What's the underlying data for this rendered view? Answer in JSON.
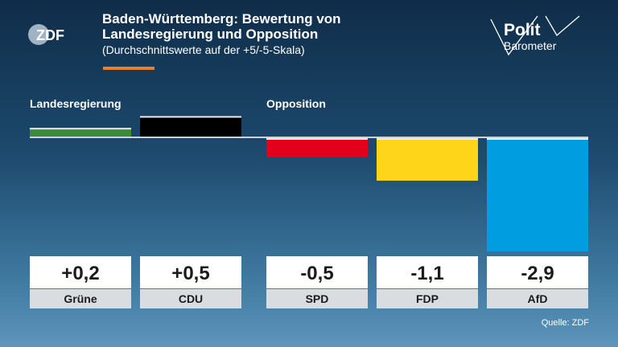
{
  "header": {
    "title_lines": [
      "Baden-Württemberg: Bewertung von",
      "Landesregierung und Opposition"
    ],
    "subtitle": "(Durchschnittswerte auf der +5/-5-Skala)",
    "accent_color": "#f07d22"
  },
  "logos": {
    "broadcaster": "ZDF",
    "program": [
      "Polit",
      "Barometer"
    ]
  },
  "source": "Quelle: ZDF",
  "chart_data": {
    "type": "bar",
    "title": "Baden-Württemberg: Bewertung von Landesregierung und Opposition",
    "subtitle": "(Durchschnittswerte auf der +5/-5-Skala)",
    "groups": [
      {
        "label": "Landesregierung",
        "categories": [
          "Grüne",
          "CDU"
        ]
      },
      {
        "label": "Opposition",
        "categories": [
          "SPD",
          "FDP",
          "AfD"
        ]
      }
    ],
    "categories": [
      "Grüne",
      "CDU",
      "SPD",
      "FDP",
      "AfD"
    ],
    "values": [
      0.2,
      0.5,
      -0.5,
      -1.1,
      -2.9
    ],
    "value_labels": [
      "+0,2",
      "+0,5",
      "-0,5",
      "-1,1",
      "-2,9"
    ],
    "colors": [
      "#3d8b37",
      "#000000",
      "#e2001a",
      "#ffd51a",
      "#009ee0"
    ],
    "ylim": [
      -5,
      5
    ],
    "grid": false,
    "legend": "none"
  }
}
